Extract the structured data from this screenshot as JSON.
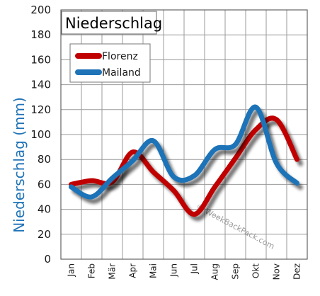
{
  "chart_data": {
    "type": "line",
    "title": "Niederschlag",
    "ylabel": "Niederschlag (mm)",
    "xlabel": "",
    "ylim": [
      0,
      200
    ],
    "yticks": [
      0,
      20,
      40,
      60,
      80,
      100,
      120,
      140,
      160,
      180,
      200
    ],
    "grid": true,
    "legend_position": "top-left",
    "categories": [
      "Jan",
      "Feb",
      "Mär",
      "Apr",
      "Mai",
      "Jun",
      "Jul",
      "Aug",
      "Sep",
      "Okt",
      "Nov",
      "Dez"
    ],
    "series": [
      {
        "name": "Florenz",
        "color": "#c00000",
        "values": [
          60,
          63,
          62,
          86,
          70,
          55,
          36,
          58,
          81,
          104,
          112,
          80
        ]
      },
      {
        "name": "Mailand",
        "color": "#1f73b7",
        "values": [
          58,
          50,
          65,
          79,
          95,
          66,
          67,
          88,
          92,
          122,
          77,
          61
        ]
      }
    ],
    "watermark": "© WeekBackPack.com"
  }
}
